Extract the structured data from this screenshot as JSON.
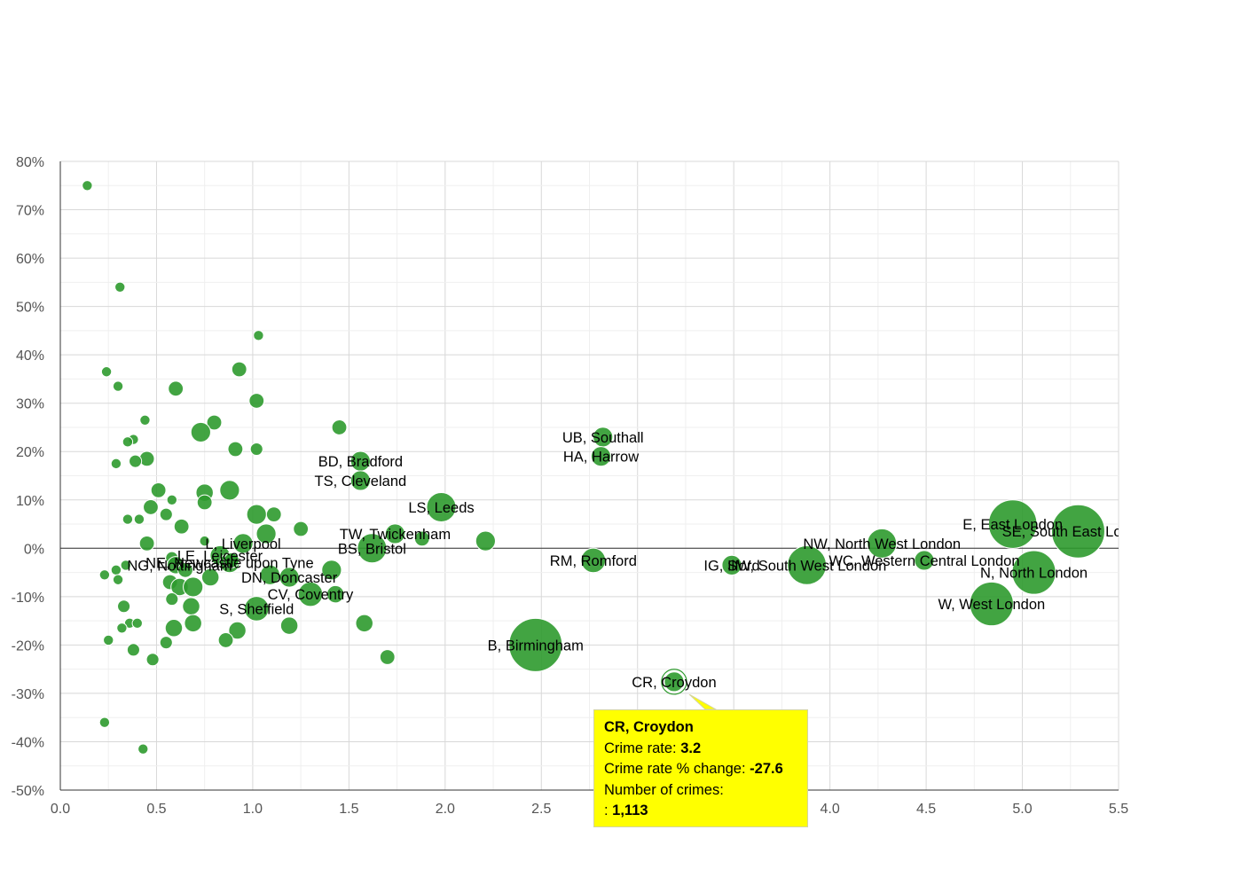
{
  "chart_data": {
    "type": "scatter",
    "title": "",
    "xlabel": "",
    "ylabel": "",
    "xlim": [
      0,
      5.5
    ],
    "ylim": [
      -50,
      80
    ],
    "x_ticks": [
      "0.0",
      "0.5",
      "1.0",
      "1.5",
      "2.0",
      "2.5",
      "3.0",
      "3.5",
      "4.0",
      "4.5",
      "5.0",
      "5.5"
    ],
    "y_ticks": [
      "80%",
      "70%",
      "60%",
      "50%",
      "40%",
      "30%",
      "20%",
      "10%",
      "0%",
      "-10%",
      "-20%",
      "-30%",
      "-40%",
      "-50%"
    ],
    "grid": true,
    "bubble_color": "#2e9a2e",
    "points": [
      {
        "x": 0.14,
        "y": 75,
        "size": 1
      },
      {
        "x": 0.31,
        "y": 54,
        "size": 1
      },
      {
        "x": 1.03,
        "y": 44,
        "size": 1
      },
      {
        "x": 0.93,
        "y": 37,
        "size": 2
      },
      {
        "x": 0.24,
        "y": 36.5,
        "size": 1
      },
      {
        "x": 0.3,
        "y": 33.5,
        "size": 1
      },
      {
        "x": 0.6,
        "y": 33,
        "size": 2
      },
      {
        "x": 1.02,
        "y": 30.5,
        "size": 2
      },
      {
        "x": 0.44,
        "y": 26.5,
        "size": 1
      },
      {
        "x": 0.8,
        "y": 26,
        "size": 2
      },
      {
        "x": 1.45,
        "y": 25,
        "size": 2
      },
      {
        "x": 0.73,
        "y": 24,
        "size": 3
      },
      {
        "x": 0.38,
        "y": 22.5,
        "size": 1
      },
      {
        "x": 0.35,
        "y": 22,
        "size": 1
      },
      {
        "x": 0.91,
        "y": 20.5,
        "size": 2
      },
      {
        "x": 1.02,
        "y": 20.5,
        "size": 1.5
      },
      {
        "x": 0.45,
        "y": 18.5,
        "size": 2
      },
      {
        "x": 0.39,
        "y": 18,
        "size": 1.5
      },
      {
        "x": 0.29,
        "y": 17.5,
        "size": 1
      },
      {
        "x": 1.56,
        "y": 18,
        "size": 3
      },
      {
        "x": 1.56,
        "y": 14,
        "size": 3
      },
      {
        "x": 0.88,
        "y": 12,
        "size": 3
      },
      {
        "x": 0.51,
        "y": 12,
        "size": 2
      },
      {
        "x": 0.75,
        "y": 11.5,
        "size": 2.5
      },
      {
        "x": 0.58,
        "y": 10,
        "size": 1
      },
      {
        "x": 0.75,
        "y": 9.5,
        "size": 2
      },
      {
        "x": 0.47,
        "y": 8.5,
        "size": 2
      },
      {
        "x": 1.98,
        "y": 8.5,
        "size": 5
      },
      {
        "x": 1.02,
        "y": 7,
        "size": 3
      },
      {
        "x": 1.11,
        "y": 7,
        "size": 2
      },
      {
        "x": 0.55,
        "y": 7,
        "size": 1.5
      },
      {
        "x": 0.41,
        "y": 6,
        "size": 1
      },
      {
        "x": 0.35,
        "y": 6,
        "size": 1
      },
      {
        "x": 0.63,
        "y": 4.5,
        "size": 2
      },
      {
        "x": 1.25,
        "y": 4,
        "size": 2
      },
      {
        "x": 1.07,
        "y": 3,
        "size": 3
      },
      {
        "x": 1.74,
        "y": 3,
        "size": 3
      },
      {
        "x": 1.88,
        "y": 2,
        "size": 2
      },
      {
        "x": 2.21,
        "y": 1.5,
        "size": 3
      },
      {
        "x": 0.75,
        "y": 1.5,
        "size": 1
      },
      {
        "x": 0.45,
        "y": 1,
        "size": 2
      },
      {
        "x": 0.95,
        "y": 1,
        "size": 3
      },
      {
        "x": 1.62,
        "y": 0,
        "size": 5
      },
      {
        "x": 0.83,
        "y": -1.5,
        "size": 3
      },
      {
        "x": 0.88,
        "y": -3,
        "size": 3
      },
      {
        "x": 0.89,
        "y": -2.5,
        "size": 2
      },
      {
        "x": 0.58,
        "y": -2,
        "size": 1.5
      },
      {
        "x": 0.34,
        "y": -3.5,
        "size": 1
      },
      {
        "x": 0.6,
        "y": -3.5,
        "size": 2.5
      },
      {
        "x": 0.29,
        "y": -4.5,
        "size": 1
      },
      {
        "x": 0.65,
        "y": -4.5,
        "size": 2
      },
      {
        "x": 1.41,
        "y": -4.5,
        "size": 3
      },
      {
        "x": 1.09,
        "y": -5.5,
        "size": 3
      },
      {
        "x": 0.23,
        "y": -5.5,
        "size": 1
      },
      {
        "x": 0.78,
        "y": -6,
        "size": 2.5
      },
      {
        "x": 1.19,
        "y": -6,
        "size": 3
      },
      {
        "x": 0.3,
        "y": -6.5,
        "size": 1
      },
      {
        "x": 0.57,
        "y": -7,
        "size": 2
      },
      {
        "x": 0.62,
        "y": -8,
        "size": 2.5
      },
      {
        "x": 0.69,
        "y": -8,
        "size": 3
      },
      {
        "x": 1.3,
        "y": -9.5,
        "size": 4
      },
      {
        "x": 1.43,
        "y": -9.5,
        "size": 2.5
      },
      {
        "x": 0.58,
        "y": -10.5,
        "size": 1.5
      },
      {
        "x": 0.33,
        "y": -12,
        "size": 1.5
      },
      {
        "x": 0.68,
        "y": -12,
        "size": 2.5
      },
      {
        "x": 1.02,
        "y": -12.5,
        "size": 4
      },
      {
        "x": 0.36,
        "y": -15.5,
        "size": 1
      },
      {
        "x": 0.4,
        "y": -15.5,
        "size": 1
      },
      {
        "x": 0.69,
        "y": -15.5,
        "size": 2.5
      },
      {
        "x": 1.58,
        "y": -15.5,
        "size": 2.5
      },
      {
        "x": 0.32,
        "y": -16.5,
        "size": 1
      },
      {
        "x": 0.59,
        "y": -16.5,
        "size": 2.5
      },
      {
        "x": 0.92,
        "y": -17,
        "size": 2.5
      },
      {
        "x": 1.19,
        "y": -16,
        "size": 2.5
      },
      {
        "x": 0.25,
        "y": -19,
        "size": 1
      },
      {
        "x": 0.55,
        "y": -19.5,
        "size": 1.5
      },
      {
        "x": 0.86,
        "y": -19,
        "size": 2
      },
      {
        "x": 0.38,
        "y": -21,
        "size": 1.5
      },
      {
        "x": 0.48,
        "y": -23,
        "size": 1.5
      },
      {
        "x": 1.7,
        "y": -22.5,
        "size": 2
      },
      {
        "x": 0.23,
        "y": -36,
        "size": 1
      },
      {
        "x": 0.43,
        "y": -41.5,
        "size": 1
      },
      {
        "x": 2.47,
        "y": -20,
        "size": 10
      },
      {
        "x": 2.82,
        "y": 23,
        "size": 3
      },
      {
        "x": 2.81,
        "y": 19,
        "size": 3
      },
      {
        "x": 2.77,
        "y": -2.5,
        "size": 4
      },
      {
        "x": 3.19,
        "y": -27.6,
        "size": 3
      },
      {
        "x": 3.49,
        "y": -3.5,
        "size": 3
      },
      {
        "x": 3.88,
        "y": -3.5,
        "size": 7
      },
      {
        "x": 4.27,
        "y": 1,
        "size": 5
      },
      {
        "x": 4.49,
        "y": -2.5,
        "size": 3
      },
      {
        "x": 4.95,
        "y": 5,
        "size": 9
      },
      {
        "x": 5.29,
        "y": 3.5,
        "size": 10
      },
      {
        "x": 5.06,
        "y": -5,
        "size": 8
      },
      {
        "x": 4.84,
        "y": -11.5,
        "size": 8
      }
    ],
    "labels": [
      {
        "text": "UB, Southall",
        "x": 2.82,
        "y": 23
      },
      {
        "text": "HA, Harrow",
        "x": 2.81,
        "y": 19
      },
      {
        "text": "BD, Bradford",
        "x": 1.56,
        "y": 18
      },
      {
        "text": "TS, Cleveland",
        "x": 1.56,
        "y": 14
      },
      {
        "text": "LS, Leeds",
        "x": 1.98,
        "y": 8.5
      },
      {
        "text": "TW, Twickenham",
        "x": 1.74,
        "y": 3
      },
      {
        "text": "BS, Bristol",
        "x": 1.62,
        "y": 0
      },
      {
        "text": "L, Liverpool",
        "x": 0.95,
        "y": 1
      },
      {
        "text": "NE, Newcastle upon Tyne",
        "x": 0.88,
        "y": -3
      },
      {
        "text": "LE, Leicester",
        "x": 0.83,
        "y": -1.5
      },
      {
        "text": "NG, Nottingham",
        "x": 0.62,
        "y": -3.5
      },
      {
        "text": "DN, Doncaster",
        "x": 1.19,
        "y": -6
      },
      {
        "text": "CV, Coventry",
        "x": 1.3,
        "y": -9.5
      },
      {
        "text": "S, Sheffield",
        "x": 1.02,
        "y": -12.5
      },
      {
        "text": "RM, Romford",
        "x": 2.77,
        "y": -2.5
      },
      {
        "text": "B, Birmingham",
        "x": 2.47,
        "y": -20
      },
      {
        "text": "CR, Croydon",
        "x": 3.19,
        "y": -27.6
      },
      {
        "text": "IG, Ilford",
        "x": 3.49,
        "y": -3.5
      },
      {
        "text": "SW, South West London",
        "x": 3.88,
        "y": -3.5
      },
      {
        "text": "NW, North West London",
        "x": 4.27,
        "y": 1
      },
      {
        "text": "WC, Western Central London",
        "x": 4.49,
        "y": -2.5
      },
      {
        "text": "SE, South East London",
        "x": 5.29,
        "y": 3.5
      },
      {
        "text": "E, East London",
        "x": 4.95,
        "y": 5
      },
      {
        "text": "N, North London",
        "x": 5.06,
        "y": -5
      },
      {
        "text": "W, West London",
        "x": 4.84,
        "y": -11.5
      }
    ],
    "highlighted": "CR, Croydon"
  },
  "tooltip": {
    "title": "CR, Croydon",
    "rate_label": "Crime rate: ",
    "rate_value": "3.2",
    "change_label": "Crime rate % change: ",
    "change_value": "-27.6",
    "count_label": "Number of crimes:",
    "count_prefix": ": ",
    "count_value": "1,113",
    "background": "#ffff00"
  }
}
